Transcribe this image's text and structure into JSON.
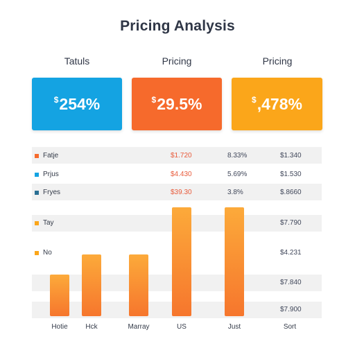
{
  "title": "Pricing Analysis",
  "cards": [
    {
      "label": "Tatuls",
      "value": "254%",
      "prefix": "$",
      "color": "#14a3e2"
    },
    {
      "label": "Pricing",
      "value": "29.5%",
      "prefix": "$",
      "color": "#f66a2c"
    },
    {
      "label": "Pricing",
      "value": ",478%",
      "prefix": "$",
      "color": "#fba61a"
    }
  ],
  "table": {
    "rows": [
      {
        "label": "Fatje",
        "swatch": "#f66a2c",
        "price": "$1.720",
        "pct": "8.33%",
        "total": "$1.340"
      },
      {
        "label": "Prjus",
        "swatch": "#14a3e2",
        "price": "$4.430",
        "pct": "5.69%",
        "total": "$1.530"
      },
      {
        "label": "Fryes",
        "swatch": "#2a6f93",
        "price": "$39.30",
        "pct": "3.8%",
        "total": "$.8660"
      },
      {
        "label": "Tay",
        "swatch": "#fba61a"
      },
      {
        "label": "No",
        "swatch": "#fba61a"
      }
    ],
    "right_values": [
      "$7.790",
      "$4.231",
      "$7.840",
      "$7.900"
    ]
  },
  "chart_data": {
    "type": "bar",
    "categories": [
      "Hotie",
      "Hck",
      "Marray",
      "US",
      "Just",
      "Sort"
    ],
    "values": [
      4,
      6,
      6,
      10.5,
      10.5,
      null
    ],
    "ylim": [
      0,
      11
    ],
    "colors": [
      "#fcaa3a",
      "#f6762d"
    ]
  }
}
